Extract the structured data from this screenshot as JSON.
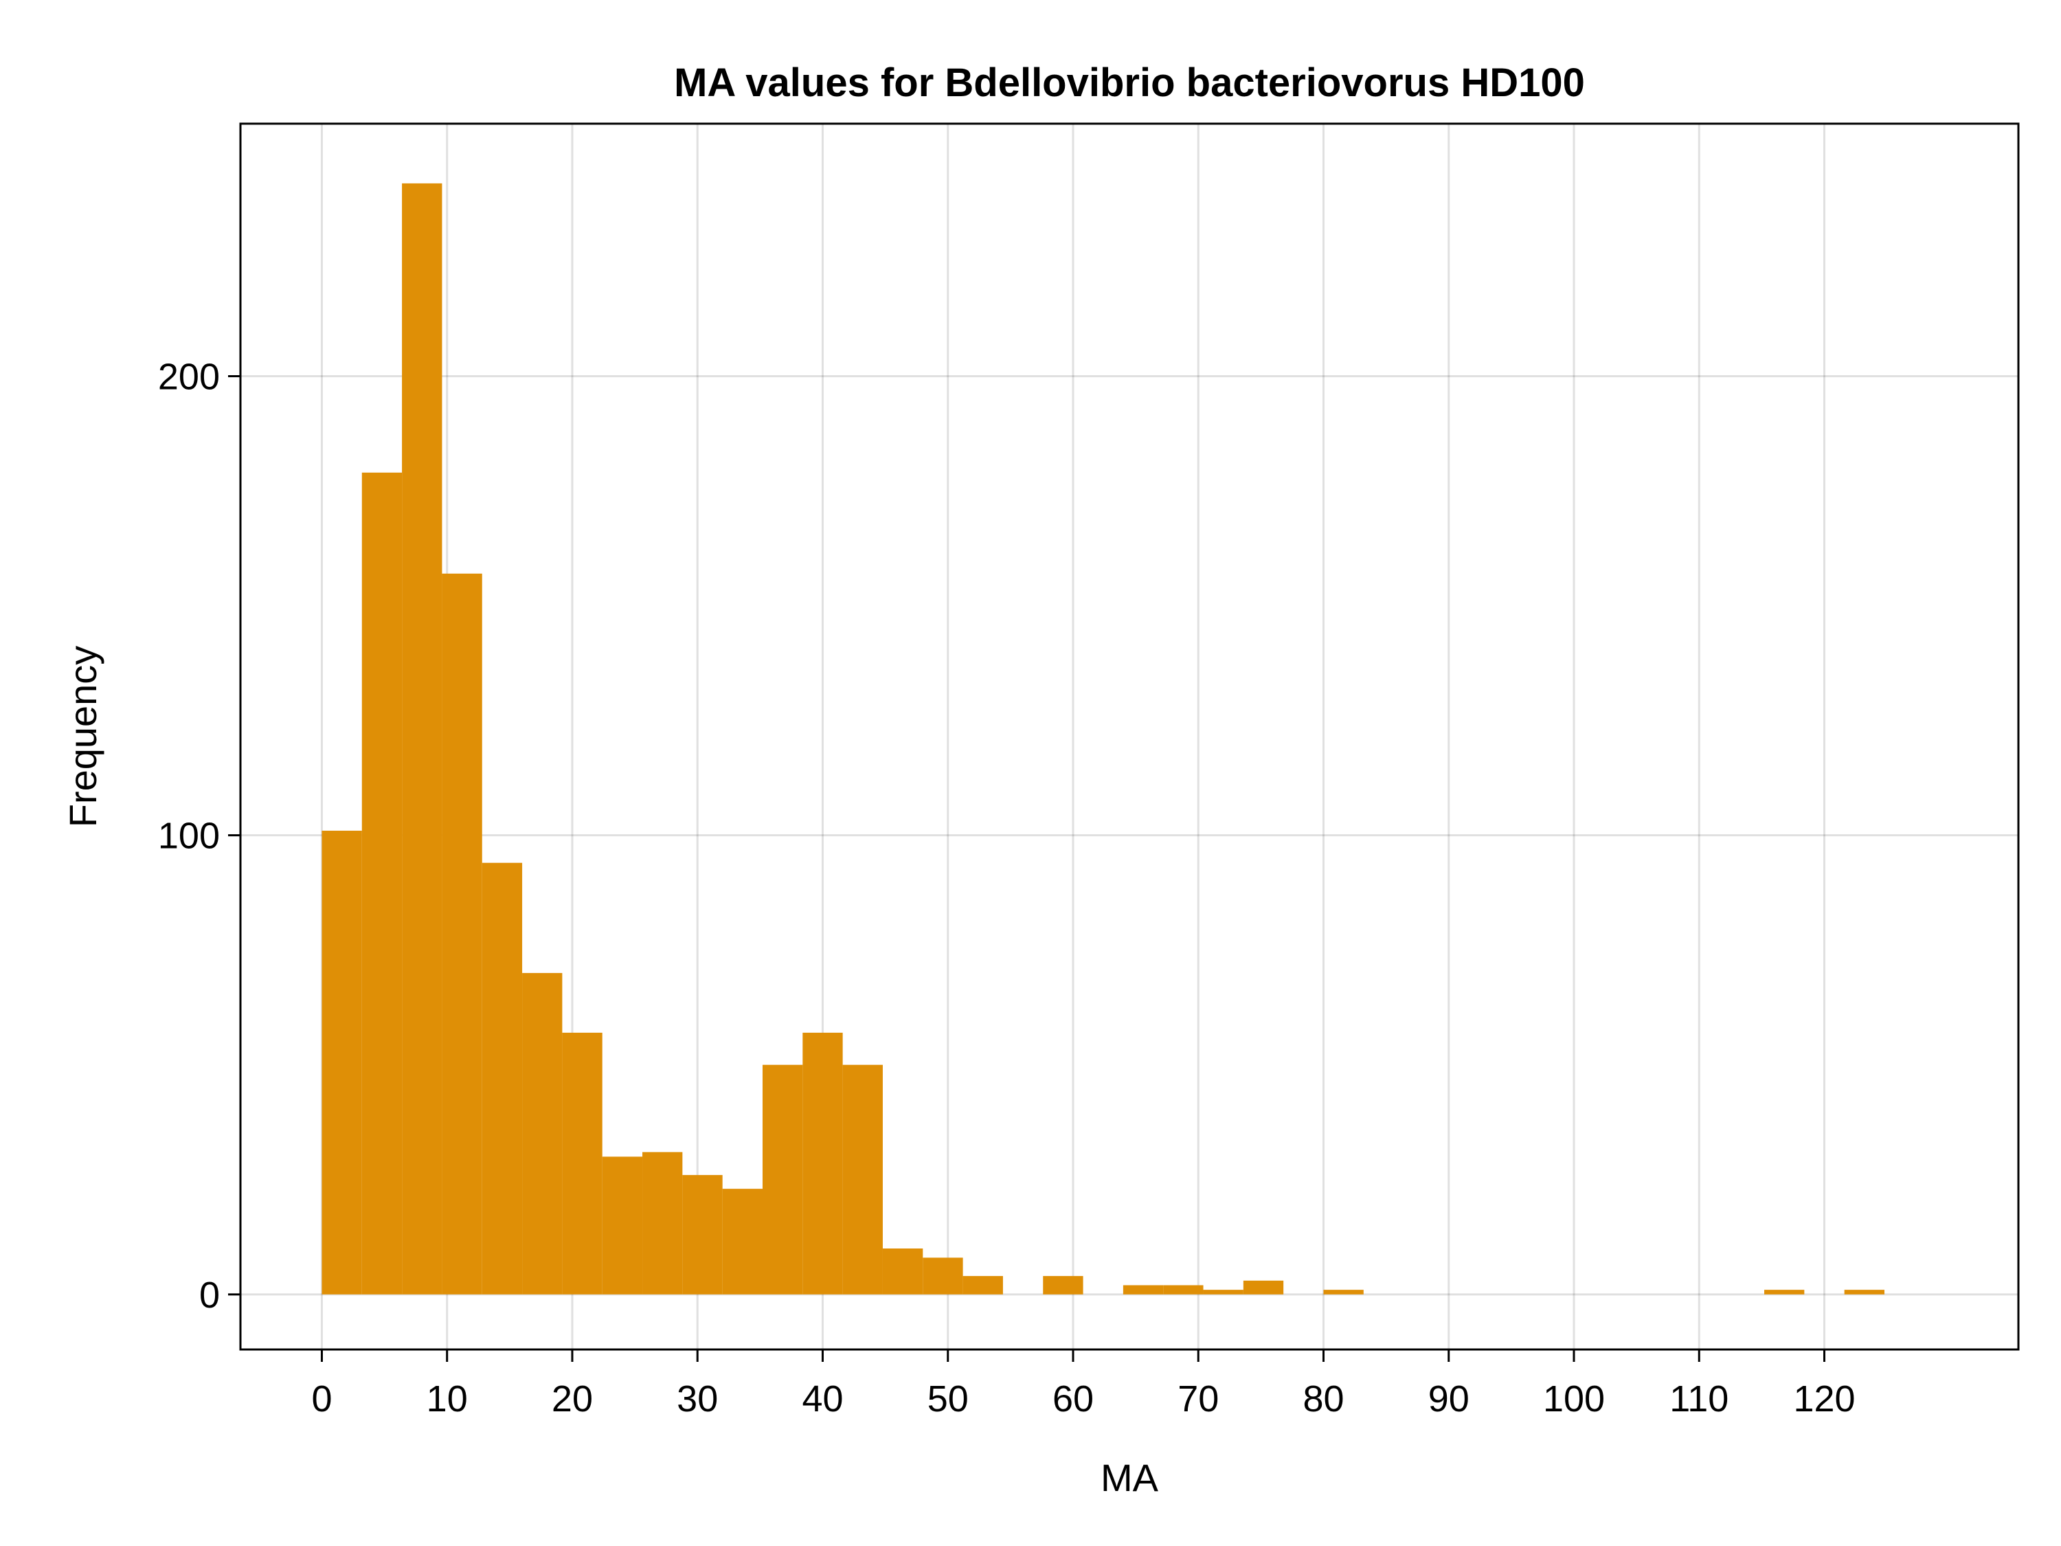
{
  "chart_data": {
    "type": "bar",
    "title": "MA values for Bdellovibrio bacteriovorus HD100",
    "xlabel": "MA",
    "ylabel": "Frequency",
    "xlim": [
      -6.5,
      135.5
    ],
    "ylim": [
      -12,
      255
    ],
    "x_ticks": [
      0,
      10,
      20,
      30,
      40,
      50,
      60,
      70,
      80,
      90,
      100,
      110,
      120
    ],
    "x_tick_labels": [
      "0",
      "10",
      "20",
      "30",
      "40",
      "50",
      "60",
      "70",
      "80",
      "90",
      "100",
      "110",
      "120"
    ],
    "y_ticks": [
      0,
      100,
      200
    ],
    "y_tick_labels": [
      "0",
      "100",
      "200"
    ],
    "bin_width": 3.2,
    "bin_start": 0,
    "values": [
      101,
      179,
      242,
      157,
      94,
      70,
      57,
      30,
      31,
      26,
      23,
      50,
      57,
      50,
      10,
      8,
      4,
      0,
      4,
      0,
      2,
      2,
      1,
      3,
      0,
      1,
      0,
      0,
      0,
      0,
      0,
      0,
      0,
      0,
      0,
      0,
      1,
      0,
      1
    ],
    "grid": true,
    "legend": "none",
    "bar_color": "#df8f06"
  }
}
